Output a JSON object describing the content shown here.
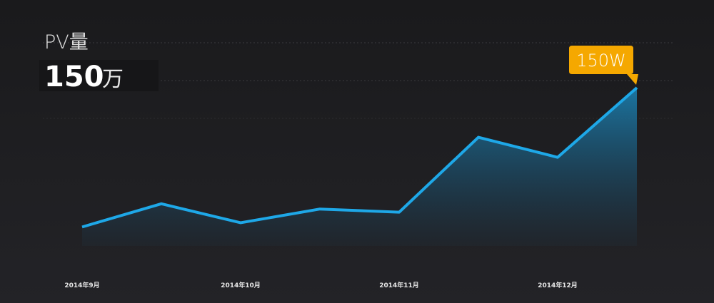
{
  "kpi": {
    "label": "PV量",
    "value": 150,
    "unit": "万"
  },
  "chart_data": {
    "type": "area",
    "categories": [
      "2014年9月",
      null,
      "2014年10月",
      null,
      "2014年11月",
      null,
      "2014年12月",
      null
    ],
    "values": [
      18,
      40,
      22,
      35,
      32,
      103,
      84,
      150
    ],
    "value_labels": [
      null,
      null,
      null,
      null,
      null,
      null,
      null,
      "150W"
    ],
    "color": "#1ea8e8",
    "callout_color": "#f5a800"
  }
}
